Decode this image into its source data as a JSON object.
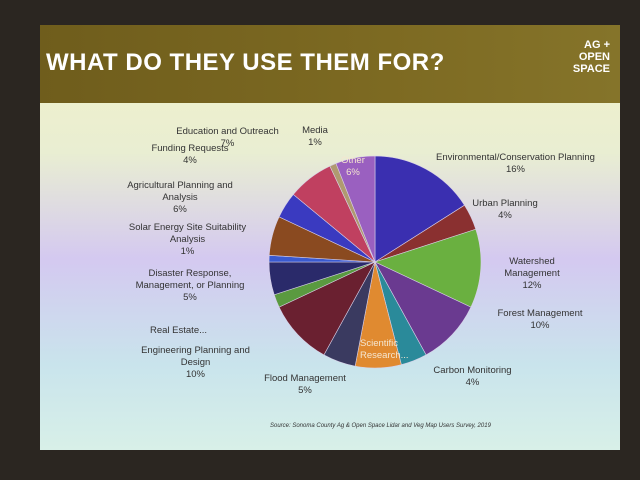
{
  "chart_data": {
    "type": "pie",
    "title": "WHAT DO THEY USE THEM FOR?",
    "logo": [
      "AG +",
      "OPEN",
      "SPACE"
    ],
    "source": "Source: Sonoma County Ag & Open Space Lidar and Veg Map Users Survey, 2019",
    "categories": [
      "Environmental/Conservation Planning",
      "Urban Planning",
      "Watershed Management",
      "Forest Management",
      "Carbon Monitoring",
      "Scientific Research...",
      "Flood Management",
      "Engineering Planning and Design",
      "Real Estate...",
      "Disaster Response, Management, or Planning",
      "Solar Energy Site Suitability Analysis",
      "Agricultural Planning and Analysis",
      "Funding Requests",
      "Education and Outreach",
      "Media",
      "Other"
    ],
    "values": [
      16,
      4,
      12,
      10,
      4,
      7,
      5,
      10,
      2,
      5,
      1,
      6,
      4,
      7,
      1,
      6
    ],
    "value_labels": [
      "16%",
      "4%",
      "12%",
      "10%",
      "4%",
      null,
      "5%",
      "10%",
      null,
      "5%",
      "1%",
      "6%",
      "4%",
      "7%",
      "1%",
      "6%"
    ],
    "colors": [
      "#3a2fb0",
      "#8a3030",
      "#6ab040",
      "#6a3a90",
      "#2a8a9a",
      "#e08a30",
      "#3a3a60",
      "#6a2030",
      "#5a9a40",
      "#2a2a6a",
      "#3a5ad0",
      "#8a4a20",
      "#3a3ac0",
      "#c04060",
      "#b09a70",
      "#9a60c0"
    ]
  }
}
